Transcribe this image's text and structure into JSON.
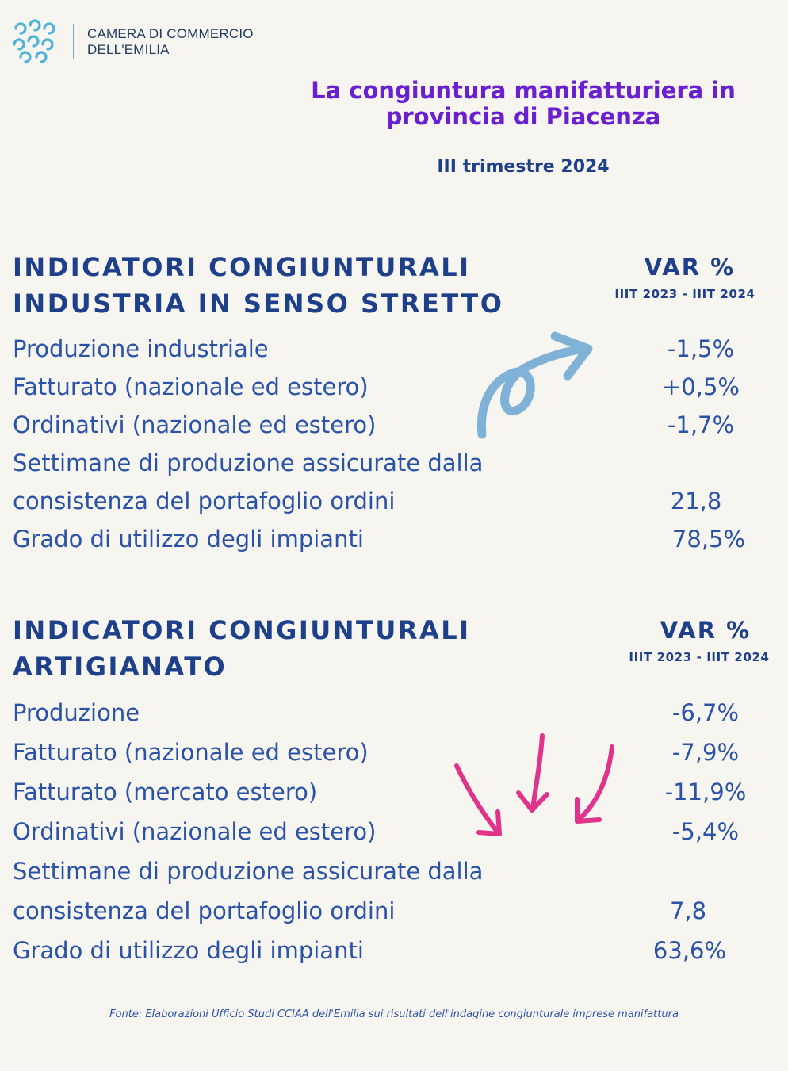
{
  "brand": {
    "line1": "CAMERA DI COMMERCIO",
    "line2": "DELL'EMILIA"
  },
  "header": {
    "title_line1": "La congiuntura manifatturiera in",
    "title_line2": "provincia di Piacenza",
    "period": "III trimestre 2024"
  },
  "industria": {
    "title_line1": "INDICATORI CONGIUNTURALI",
    "title_line2": "INDUSTRIA IN SENSO STRETTO",
    "var_label": "VAR %",
    "var_period": "IIIT 2023 - IIIT 2024",
    "rows": [
      {
        "label": "Produzione industriale",
        "value": "-1,5%"
      },
      {
        "label": "Fatturato (nazionale ed estero)",
        "value": "+0,5%"
      },
      {
        "label": "Ordinativi (nazionale ed estero)",
        "value": "-1,7%"
      },
      {
        "label": "Settimane di produzione assicurate dalla",
        "value": ""
      },
      {
        "label": "consistenza del portafoglio ordini",
        "value": "21,8"
      },
      {
        "label": "Grado di utilizzo degli impianti",
        "value": "78,5%"
      }
    ]
  },
  "artigianato": {
    "title_line1": "INDICATORI CONGIUNTURALI",
    "title_line2": "ARTIGIANATO",
    "var_label": "VAR %",
    "var_period": "IIIT 2023 - IIIT 2024",
    "rows": [
      {
        "label": "Produzione",
        "value": "-6,7%"
      },
      {
        "label": "Fatturato (nazionale ed estero)",
        "value": "-7,9%"
      },
      {
        "label": "Fatturato (mercato estero)",
        "value": "-11,9%"
      },
      {
        "label": "Ordinativi (nazionale ed estero)",
        "value": "-5,4%"
      },
      {
        "label": "Settimane di produzione assicurate dalla",
        "value": ""
      },
      {
        "label": "consistenza del portafoglio ordini",
        "value": "7,8"
      },
      {
        "label": "Grado di utilizzo degli impianti",
        "value": "63,6%"
      }
    ]
  },
  "source": "Fonte: Elaborazioni Ufficio Studi CCIAA dell'Emilia sui risultati dell'indagine congiunturale imprese manifattura",
  "colors": {
    "title": "#6a1fd0",
    "navy": "#1e3f8a",
    "text": "#2a52a8",
    "arrow_up": "#7fb2d6",
    "arrow_down": "#e0338c"
  },
  "icons": {
    "logo": "ccc-logo-icon",
    "arrow_up": "curly-arrow-up-icon",
    "arrow_down": "arrow-down-icon"
  }
}
